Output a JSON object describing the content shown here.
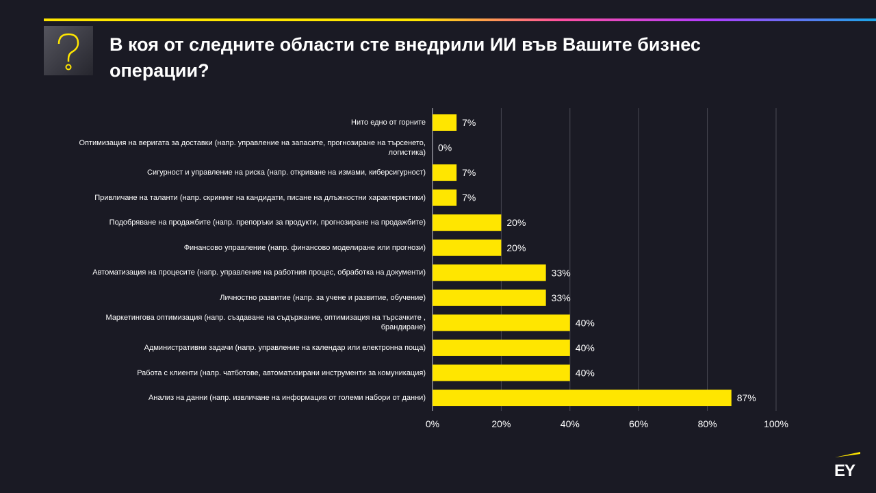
{
  "logo": "EY",
  "chart_data": {
    "type": "bar",
    "orientation": "horizontal",
    "title": "В коя от следните области сте внедрили ИИ във Вашите бизнес операции?",
    "categories": [
      "Нито едно от горните",
      "Оптимизация на веригата за доставки (напр. управление на запасите, прогнозиране на търсенето, логистика)",
      "Сигурност и управление на риска (напр. откриване на измами, киберсигурност)",
      "Привличане на таланти (напр. скрининг на кандидати, писане на длъжностни характеристики)",
      "Подобряване на продажбите (напр. препоръки за продукти, прогнозиране на продажбите)",
      "Финансово управление (напр. финансово моделиране или прогнози)",
      "Автоматизация на процесите (напр. управление на работния процес, обработка на документи)",
      "Личностно развитие (напр. за учене и развитие, обучение)",
      "Маркетингова оптимизация (напр. създаване на съдържание, оптимизация на търсачките , брандиране)",
      "Административни задачи (напр. управление на календар или електронна поща)",
      "Работа с клиенти (напр. чатботове, автоматизирани инструменти за комуникация)",
      "Анализ на данни (напр. извличане на информация от големи набори от данни)"
    ],
    "values": [
      7,
      0,
      7,
      7,
      20,
      20,
      33,
      33,
      40,
      40,
      40,
      87
    ],
    "value_labels": [
      "7%",
      "0%",
      "7%",
      "7%",
      "20%",
      "20%",
      "33%",
      "33%",
      "40%",
      "40%",
      "40%",
      "87%"
    ],
    "color": "#ffe600",
    "xlim": [
      0,
      100
    ],
    "xticks": [
      {
        "value": 0,
        "label": "0%"
      },
      {
        "value": 20,
        "label": "20%"
      },
      {
        "value": 40,
        "label": "40%"
      },
      {
        "value": 60,
        "label": "60%"
      },
      {
        "value": 80,
        "label": "80%"
      },
      {
        "value": 100,
        "label": "100%"
      }
    ],
    "grid": true
  }
}
